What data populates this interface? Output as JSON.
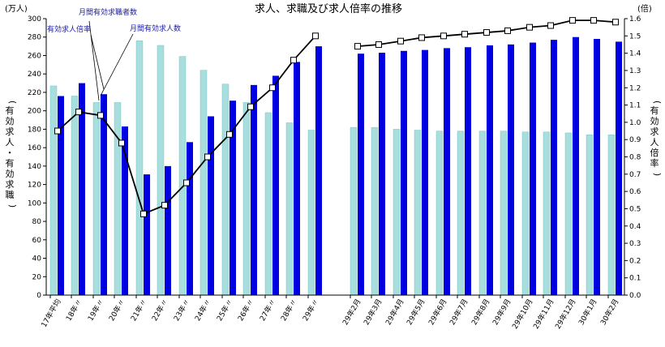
{
  "chart_data": {
    "type": "bar",
    "title": "求人、求職及び求人倍率の推移",
    "left_unit": "(万人)",
    "right_unit": "(倍)",
    "ylabel_left": "(有効求人・有効求職)",
    "ylabel_right": "(有効求人倍率)",
    "ylim_left": [
      0,
      300
    ],
    "ylim_right": [
      0,
      1.6
    ],
    "yticks_left": [
      "0",
      "20",
      "40",
      "60",
      "80",
      "100",
      "120",
      "140",
      "160",
      "180",
      "200",
      "220",
      "240",
      "260",
      "280",
      "300"
    ],
    "yticks_right": [
      "0.0",
      "0.1",
      "0.2",
      "0.3",
      "0.4",
      "0.5",
      "0.6",
      "0.7",
      "0.8",
      "0.9",
      "1.0",
      "1.1",
      "1.2",
      "1.3",
      "1.4",
      "1.5",
      "1.6"
    ],
    "grid": false,
    "categories": [
      "17年平均",
      "18年〃",
      "19年〃",
      "20年〃",
      "21年〃",
      "22年〃",
      "23年〃",
      "24年〃",
      "25年〃",
      "26年〃",
      "27年〃",
      "28年〃",
      "29年〃",
      "29年2月",
      "29年3月",
      "29年4月",
      "29年5月",
      "29年6月",
      "29年7月",
      "29年8月",
      "29年9月",
      "29年10月",
      "29年11月",
      "29年12月",
      "30年1月",
      "30年2月"
    ],
    "series": [
      {
        "name": "月間有効求職者数",
        "kind": "bar",
        "axis": "left",
        "color": "#a8dede",
        "values": [
          227,
          216,
          209,
          209,
          276,
          271,
          259,
          244,
          229,
          209,
          198,
          187,
          179,
          182,
          182,
          180,
          179,
          178,
          178,
          178,
          178,
          177,
          177,
          176,
          174,
          174
        ]
      },
      {
        "name": "月間有効求人数",
        "kind": "bar",
        "axis": "left",
        "color": "#0000e0",
        "values": [
          216,
          230,
          218,
          183,
          131,
          140,
          166,
          194,
          211,
          228,
          238,
          253,
          270,
          262,
          263,
          265,
          266,
          268,
          269,
          271,
          272,
          274,
          277,
          280,
          278,
          275
        ]
      },
      {
        "name": "有効求人倍率",
        "kind": "line",
        "axis": "right",
        "color": "#000000",
        "values": [
          0.95,
          1.06,
          1.04,
          0.88,
          0.47,
          0.52,
          0.65,
          0.8,
          0.93,
          1.09,
          1.2,
          1.36,
          1.5,
          1.44,
          1.45,
          1.47,
          1.49,
          1.5,
          1.51,
          1.52,
          1.53,
          1.55,
          1.56,
          1.59,
          1.59,
          1.58
        ]
      }
    ]
  }
}
